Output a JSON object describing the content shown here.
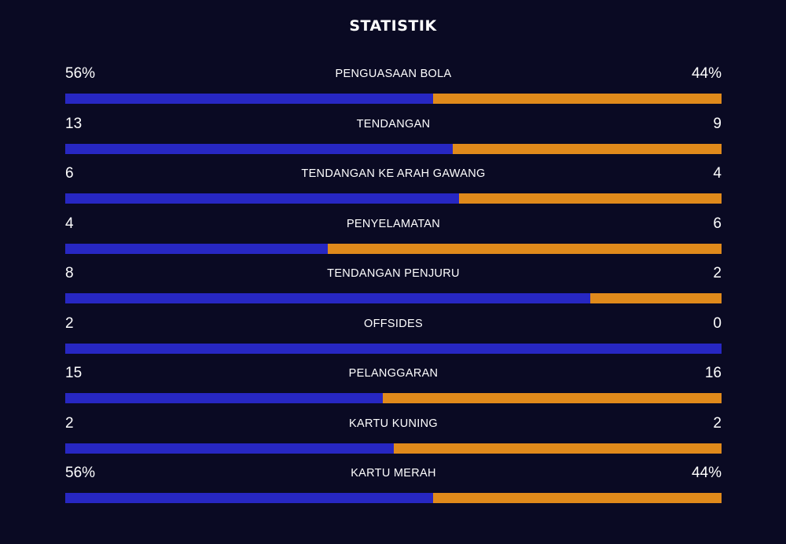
{
  "title": "STATISTIK",
  "colors": {
    "background": "#0a0a23",
    "home": "#2727c2",
    "away": "#e08a1b",
    "text": "#ffffff"
  },
  "stats": [
    {
      "label": "PENGUASAAN BOLA",
      "home": "56%",
      "away": "44%",
      "home_share": 0.56
    },
    {
      "label": "TENDANGAN",
      "home": "13",
      "away": "9",
      "home_share": 0.5909
    },
    {
      "label": "TENDANGAN KE ARAH GAWANG",
      "home": "6",
      "away": "4",
      "home_share": 0.6
    },
    {
      "label": "PENYELAMATAN",
      "home": "4",
      "away": "6",
      "home_share": 0.4
    },
    {
      "label": "TENDANGAN PENJURU",
      "home": "8",
      "away": "2",
      "home_share": 0.8
    },
    {
      "label": "OFFSIDES",
      "home": "2",
      "away": "0",
      "home_share": 1.0
    },
    {
      "label": "PELANGGARAN",
      "home": "15",
      "away": "16",
      "home_share": 0.4839
    },
    {
      "label": "KARTU KUNING",
      "home": "2",
      "away": "2",
      "home_share": 0.5
    },
    {
      "label": "KARTU MERAH",
      "home": "56%",
      "away": "44%",
      "home_share": 0.56
    }
  ]
}
